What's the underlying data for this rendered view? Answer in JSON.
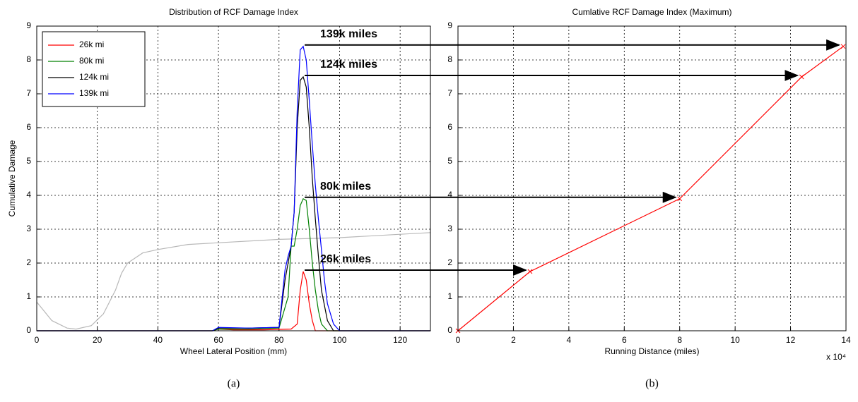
{
  "chart_data": [
    {
      "type": "line",
      "title": "Distribution of RCF Damage Index",
      "xlabel": "Wheel Lateral Position (mm)",
      "ylabel": "Cumulative Damage",
      "xlim": [
        0,
        130
      ],
      "xticks": [
        0,
        20,
        40,
        60,
        80,
        100,
        120
      ],
      "ylim": [
        0,
        9
      ],
      "yticks": [
        0,
        1,
        2,
        3,
        4,
        5,
        6,
        7,
        8,
        9
      ],
      "grid": true,
      "legend": "upper left",
      "caption": "(a)",
      "series": [
        {
          "name": "26k mi",
          "color": "#ff0000",
          "x": [
            0,
            58,
            60,
            65,
            75,
            84,
            86,
            87,
            88,
            89,
            90,
            91,
            92,
            100,
            130
          ],
          "values": [
            0,
            0,
            0.05,
            0.03,
            0.03,
            0.05,
            0.2,
            1.2,
            1.75,
            1.5,
            0.8,
            0.3,
            0,
            0,
            0
          ]
        },
        {
          "name": "80k mi",
          "color": "#008000",
          "x": [
            0,
            58,
            60,
            70,
            80,
            83,
            84,
            85,
            86,
            87,
            88,
            89,
            90,
            91,
            92,
            93,
            94,
            96,
            130
          ],
          "values": [
            0,
            0,
            0.05,
            0.05,
            0.08,
            1.0,
            2.5,
            2.5,
            3.0,
            3.7,
            3.9,
            3.85,
            3.0,
            2.0,
            1.2,
            0.6,
            0.2,
            0,
            0
          ]
        },
        {
          "name": "124k mi",
          "color": "#000000",
          "x": [
            0,
            58,
            60,
            70,
            80,
            82,
            84,
            85,
            86,
            87,
            88,
            89,
            90,
            91,
            92,
            93,
            94,
            96,
            98,
            130
          ],
          "values": [
            0,
            0,
            0.08,
            0.08,
            0.1,
            1.5,
            2.5,
            3.5,
            6.0,
            7.4,
            7.5,
            7.2,
            6.0,
            4.5,
            3.3,
            2.2,
            1.2,
            0.3,
            0,
            0
          ]
        },
        {
          "name": "139k mi",
          "color": "#0000ff",
          "x": [
            0,
            58,
            60,
            70,
            80,
            82,
            83,
            84,
            85,
            86,
            87,
            88,
            89,
            90,
            91,
            92,
            93,
            94,
            95,
            96,
            98,
            100,
            130
          ],
          "values": [
            0,
            0,
            0.1,
            0.08,
            0.1,
            1.8,
            2.2,
            2.5,
            3.5,
            6.5,
            8.3,
            8.4,
            8.0,
            6.8,
            5.5,
            4.3,
            3.3,
            2.4,
            1.5,
            0.8,
            0.2,
            0,
            0
          ]
        }
      ],
      "background_curve": {
        "color": "#b8b8b8",
        "x": [
          0,
          5,
          10,
          13,
          18,
          22,
          26,
          28,
          30,
          35,
          40,
          50,
          60,
          80,
          100,
          130
        ],
        "values": [
          0.85,
          0.3,
          0.08,
          0.05,
          0.15,
          0.5,
          1.2,
          1.7,
          2.0,
          2.3,
          2.4,
          2.55,
          2.6,
          2.7,
          2.75,
          2.9
        ]
      },
      "annotations": [
        "26k miles",
        "80k miles",
        "124k miles",
        "139k miles"
      ]
    },
    {
      "type": "line",
      "title": "Cumlative RCF Damage Index (Maximum)",
      "xlabel": "Running Distance (miles)",
      "x_multiplier": "x 10⁴",
      "xlim": [
        0,
        14
      ],
      "xticks": [
        0,
        2,
        4,
        6,
        8,
        10,
        12,
        14
      ],
      "ylim": [
        0,
        9
      ],
      "yticks": [
        0,
        1,
        2,
        3,
        4,
        5,
        6,
        7,
        8,
        9
      ],
      "grid": true,
      "caption": "(b)",
      "series": [
        {
          "color": "#ff0000",
          "marker": "x",
          "x": [
            0,
            2.6,
            8,
            12.4,
            13.9
          ],
          "values": [
            0,
            1.75,
            3.9,
            7.5,
            8.4
          ]
        }
      ]
    }
  ]
}
